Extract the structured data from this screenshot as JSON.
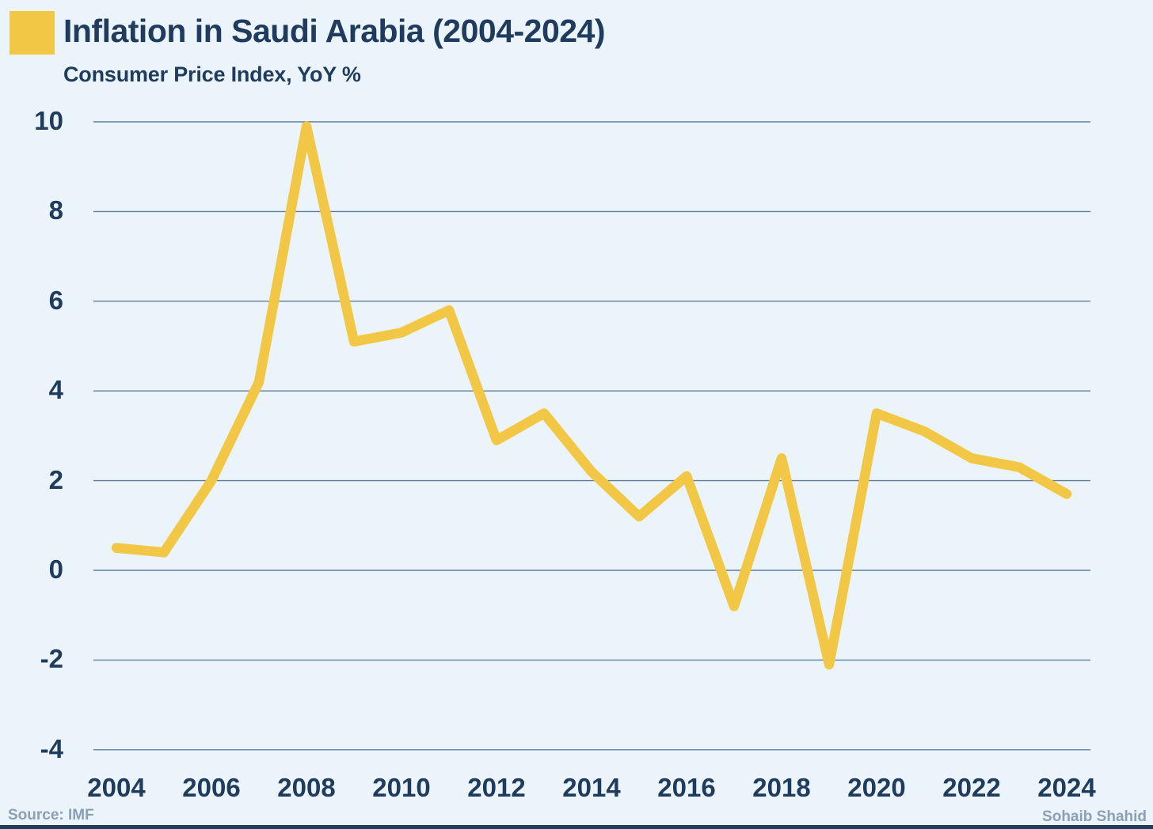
{
  "header": {
    "title": "Inflation in Saudi Arabia (2004-2024)",
    "subtitle": "Consumer Price Index, YoY %"
  },
  "colors": {
    "accent_yellow": "#F2C746",
    "title_navy": "#1F3C5F",
    "gridline": "#47698B",
    "background": "#EBF4FB",
    "footer_gray": "#8BA0B6"
  },
  "chart_data": {
    "type": "line",
    "title": "Inflation in Saudi Arabia (2004-2024)",
    "subtitle": "Consumer Price Index, YoY %",
    "series_name": "Consumer Price Index, YoY %",
    "x": [
      2004,
      2005,
      2006,
      2007,
      2008,
      2009,
      2010,
      2011,
      2012,
      2013,
      2014,
      2015,
      2016,
      2017,
      2018,
      2019,
      2020,
      2021,
      2022,
      2023,
      2024
    ],
    "values": [
      0.5,
      0.4,
      2.0,
      4.2,
      9.9,
      5.1,
      5.3,
      5.8,
      2.9,
      3.5,
      2.2,
      1.2,
      2.1,
      -0.8,
      2.5,
      -2.1,
      3.5,
      3.1,
      2.5,
      2.3,
      1.7
    ],
    "ylim": [
      -4,
      10
    ],
    "yticks": [
      10,
      8,
      6,
      4,
      2,
      0,
      -2,
      -4
    ],
    "xticks": [
      2004,
      2006,
      2008,
      2010,
      2012,
      2014,
      2016,
      2018,
      2020,
      2022,
      2024
    ],
    "grid": true,
    "legend_position": "none",
    "line_color": "#F2C746"
  },
  "footer": {
    "source": "Source: IMF",
    "author": "Sohaib Shahid"
  }
}
